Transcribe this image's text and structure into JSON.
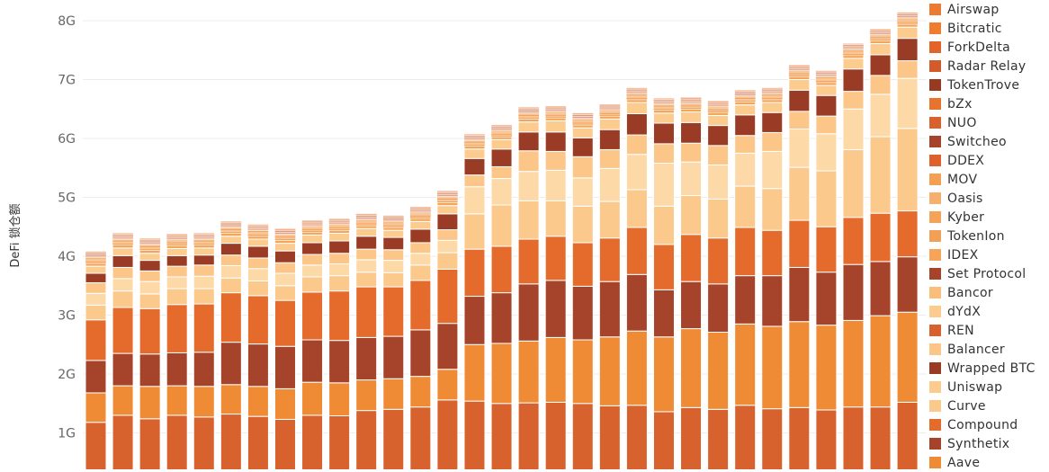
{
  "chart_data": {
    "type": "bar",
    "stacked": true,
    "ylabel": "DeFi 锁仓额",
    "xlabel": "",
    "ylim": [
      0,
      8.4
    ],
    "yticks": [
      {
        "value": 1,
        "label": "1G"
      },
      {
        "value": 2,
        "label": "2G"
      },
      {
        "value": 3,
        "label": "3G"
      },
      {
        "value": 4,
        "label": "4G"
      },
      {
        "value": 5,
        "label": "5G"
      },
      {
        "value": 6,
        "label": "6G"
      },
      {
        "value": 7,
        "label": "7G"
      },
      {
        "value": 8,
        "label": "8G"
      }
    ],
    "grid": true,
    "legend_position": "right",
    "totals": [
      4.02,
      4.3,
      4.2,
      4.25,
      4.27,
      4.46,
      4.46,
      4.39,
      4.54,
      4.62,
      4.7,
      4.65,
      4.79,
      5.1,
      5.95,
      6.15,
      6.5,
      6.6,
      6.5,
      6.57,
      6.85,
      6.52,
      6.75,
      6.7,
      6.83,
      6.85,
      7.16,
      7.05,
      7.5,
      7.9,
      8.32
    ],
    "series": [
      {
        "name": "Aave",
        "color": "#D8622D",
        "values": [
          1.18,
          1.3,
          1.24,
          1.3,
          1.27,
          1.32,
          1.28,
          1.23,
          1.3,
          1.29,
          1.38,
          1.4,
          1.44,
          1.56,
          1.54,
          1.5,
          1.51,
          1.52,
          1.5,
          1.46,
          1.47,
          1.36,
          1.43,
          1.4,
          1.47,
          1.41,
          1.43,
          1.39,
          1.44,
          1.44,
          1.52
        ]
      },
      {
        "name": "Synthetix",
        "color": "#F08B35",
        "values": [
          0.5,
          0.5,
          0.55,
          0.5,
          0.52,
          0.5,
          0.51,
          0.52,
          0.56,
          0.56,
          0.52,
          0.52,
          0.52,
          0.52,
          0.96,
          1.02,
          1.05,
          1.1,
          1.08,
          1.17,
          1.26,
          1.27,
          1.34,
          1.31,
          1.38,
          1.4,
          1.46,
          1.44,
          1.47,
          1.55,
          1.53
        ]
      },
      {
        "name": "Compound",
        "color": "#A5442A",
        "values": [
          0.55,
          0.55,
          0.55,
          0.56,
          0.58,
          0.72,
          0.72,
          0.72,
          0.72,
          0.72,
          0.72,
          0.72,
          0.79,
          0.78,
          0.82,
          0.86,
          0.97,
          0.97,
          0.91,
          0.94,
          0.96,
          0.8,
          0.8,
          0.82,
          0.82,
          0.86,
          0.92,
          0.9,
          0.95,
          0.92,
          0.94
        ]
      },
      {
        "name": "Curve",
        "color": "#E46B2C",
        "values": [
          0.69,
          0.78,
          0.77,
          0.82,
          0.82,
          0.84,
          0.82,
          0.78,
          0.81,
          0.84,
          0.86,
          0.84,
          0.84,
          0.92,
          0.8,
          0.79,
          0.76,
          0.75,
          0.74,
          0.74,
          0.8,
          0.77,
          0.8,
          0.78,
          0.82,
          0.77,
          0.8,
          0.77,
          0.8,
          0.82,
          0.78
        ]
      },
      {
        "name": "Uniswap",
        "color": "#FBC98C",
        "values": [
          0.25,
          0.28,
          0.25,
          0.27,
          0.26,
          0.25,
          0.25,
          0.25,
          0.26,
          0.26,
          0.25,
          0.24,
          0.26,
          0.28,
          0.6,
          0.7,
          0.65,
          0.6,
          0.62,
          0.62,
          0.64,
          0.65,
          0.66,
          0.66,
          0.7,
          0.71,
          0.9,
          0.95,
          1.15,
          1.3,
          1.4
        ]
      },
      {
        "name": "Wrapped BTC",
        "color": "#FDD9A8",
        "values": [
          0.2,
          0.21,
          0.21,
          0.2,
          0.21,
          0.21,
          0.21,
          0.21,
          0.2,
          0.2,
          0.21,
          0.21,
          0.2,
          0.21,
          0.46,
          0.45,
          0.5,
          0.52,
          0.48,
          0.56,
          0.6,
          0.73,
          0.57,
          0.58,
          0.56,
          0.63,
          0.65,
          0.63,
          0.69,
          0.72,
          0.85
        ]
      },
      {
        "name": "Balancer",
        "color": "#FBC687",
        "values": [
          0.18,
          0.19,
          0.18,
          0.18,
          0.19,
          0.18,
          0.18,
          0.18,
          0.18,
          0.18,
          0.18,
          0.18,
          0.18,
          0.18,
          0.2,
          0.2,
          0.35,
          0.32,
          0.36,
          0.32,
          0.33,
          0.33,
          0.32,
          0.33,
          0.3,
          0.32,
          0.3,
          0.3,
          0.3,
          0.32,
          0.3
        ]
      },
      {
        "name": "REN",
        "color": "#9A3C25",
        "values": [
          0.16,
          0.2,
          0.18,
          0.18,
          0.17,
          0.2,
          0.2,
          0.2,
          0.2,
          0.21,
          0.22,
          0.21,
          0.23,
          0.27,
          0.28,
          0.3,
          0.32,
          0.33,
          0.32,
          0.34,
          0.36,
          0.35,
          0.35,
          0.34,
          0.35,
          0.34,
          0.36,
          0.35,
          0.38,
          0.35,
          0.38
        ]
      },
      {
        "name": "dYdX",
        "color": "#FCCB8E",
        "values": [
          0.12,
          0.13,
          0.12,
          0.12,
          0.12,
          0.12,
          0.12,
          0.13,
          0.13,
          0.13,
          0.13,
          0.12,
          0.13,
          0.14,
          0.16,
          0.16,
          0.17,
          0.19,
          0.17,
          0.18,
          0.19,
          0.17,
          0.18,
          0.17,
          0.17,
          0.17,
          0.18,
          0.17,
          0.18,
          0.19,
          0.19
        ]
      },
      {
        "name": "Bancor",
        "color": "#F4A55A",
        "values": [
          0.05,
          0.05,
          0.05,
          0.05,
          0.05,
          0.05,
          0.05,
          0.05,
          0.05,
          0.05,
          0.05,
          0.05,
          0.05,
          0.05,
          0.05,
          0.05,
          0.05,
          0.05,
          0.05,
          0.05,
          0.05,
          0.05,
          0.05,
          0.05,
          0.05,
          0.05,
          0.05,
          0.05,
          0.05,
          0.05,
          0.05
        ]
      },
      {
        "name": "Set Protocol",
        "color": "#F5A55C",
        "values": [
          0.03,
          0.03,
          0.03,
          0.03,
          0.03,
          0.03,
          0.03,
          0.03,
          0.03,
          0.03,
          0.03,
          0.03,
          0.03,
          0.03,
          0.03,
          0.03,
          0.03,
          0.03,
          0.03,
          0.03,
          0.03,
          0.03,
          0.03,
          0.03,
          0.03,
          0.03,
          0.03,
          0.03,
          0.03,
          0.03,
          0.03
        ]
      },
      {
        "name": "IDEX",
        "color": "#F6A45A",
        "values": [
          0.02,
          0.02,
          0.02,
          0.02,
          0.02,
          0.02,
          0.02,
          0.02,
          0.02,
          0.02,
          0.02,
          0.02,
          0.02,
          0.02,
          0.02,
          0.02,
          0.02,
          0.02,
          0.02,
          0.02,
          0.02,
          0.02,
          0.02,
          0.02,
          0.02,
          0.02,
          0.02,
          0.02,
          0.02,
          0.02,
          0.02
        ]
      },
      {
        "name": "TokenIon",
        "color": "#F2A056",
        "values": [
          0.02,
          0.02,
          0.02,
          0.02,
          0.02,
          0.02,
          0.02,
          0.02,
          0.02,
          0.02,
          0.02,
          0.02,
          0.02,
          0.02,
          0.02,
          0.02,
          0.02,
          0.02,
          0.02,
          0.02,
          0.02,
          0.02,
          0.02,
          0.02,
          0.02,
          0.02,
          0.02,
          0.02,
          0.02,
          0.02,
          0.02
        ]
      },
      {
        "name": "Kyber",
        "color": "#F4A358",
        "values": [
          0.02,
          0.02,
          0.02,
          0.02,
          0.02,
          0.02,
          0.02,
          0.02,
          0.02,
          0.02,
          0.02,
          0.02,
          0.02,
          0.02,
          0.02,
          0.02,
          0.02,
          0.02,
          0.02,
          0.02,
          0.02,
          0.02,
          0.02,
          0.02,
          0.02,
          0.02,
          0.02,
          0.02,
          0.02,
          0.02,
          0.02
        ]
      },
      {
        "name": "Oasis",
        "color": "#F5B06E",
        "values": [
          0.01,
          0.01,
          0.01,
          0.01,
          0.01,
          0.01,
          0.01,
          0.01,
          0.01,
          0.01,
          0.01,
          0.01,
          0.01,
          0.01,
          0.01,
          0.01,
          0.01,
          0.01,
          0.01,
          0.01,
          0.01,
          0.01,
          0.01,
          0.01,
          0.01,
          0.01,
          0.01,
          0.01,
          0.01,
          0.01,
          0.01
        ]
      },
      {
        "name": "MOV",
        "color": "#F3A053",
        "values": [
          0.01,
          0.01,
          0.01,
          0.01,
          0.01,
          0.01,
          0.01,
          0.01,
          0.01,
          0.01,
          0.01,
          0.01,
          0.01,
          0.01,
          0.01,
          0.01,
          0.01,
          0.01,
          0.01,
          0.01,
          0.01,
          0.01,
          0.01,
          0.01,
          0.01,
          0.01,
          0.01,
          0.01,
          0.01,
          0.01,
          0.01
        ]
      },
      {
        "name": "DDEX",
        "color": "#E0602D",
        "values": [
          0.01,
          0.01,
          0.01,
          0.01,
          0.01,
          0.01,
          0.01,
          0.01,
          0.01,
          0.01,
          0.01,
          0.01,
          0.01,
          0.01,
          0.01,
          0.01,
          0.01,
          0.01,
          0.01,
          0.01,
          0.01,
          0.01,
          0.01,
          0.01,
          0.01,
          0.01,
          0.01,
          0.01,
          0.01,
          0.01,
          0.01
        ]
      },
      {
        "name": "Switcheo",
        "color": "#A5442A",
        "values": [
          0.01,
          0.01,
          0.01,
          0.01,
          0.01,
          0.01,
          0.01,
          0.01,
          0.01,
          0.01,
          0.01,
          0.01,
          0.01,
          0.01,
          0.01,
          0.01,
          0.01,
          0.01,
          0.01,
          0.01,
          0.01,
          0.01,
          0.01,
          0.01,
          0.01,
          0.01,
          0.01,
          0.01,
          0.01,
          0.01,
          0.01
        ]
      },
      {
        "name": "NUO",
        "color": "#D8622D",
        "values": [
          0.01,
          0.01,
          0.01,
          0.01,
          0.01,
          0.01,
          0.01,
          0.01,
          0.01,
          0.01,
          0.01,
          0.01,
          0.01,
          0.01,
          0.01,
          0.01,
          0.01,
          0.01,
          0.01,
          0.01,
          0.01,
          0.01,
          0.01,
          0.01,
          0.01,
          0.01,
          0.01,
          0.01,
          0.01,
          0.01,
          0.01
        ]
      },
      {
        "name": "bZx",
        "color": "#E8732C",
        "values": [
          0.01,
          0.01,
          0.01,
          0.01,
          0.01,
          0.01,
          0.01,
          0.01,
          0.01,
          0.01,
          0.01,
          0.01,
          0.01,
          0.01,
          0.01,
          0.01,
          0.01,
          0.01,
          0.01,
          0.01,
          0.01,
          0.01,
          0.01,
          0.01,
          0.01,
          0.01,
          0.01,
          0.01,
          0.01,
          0.01,
          0.01
        ]
      },
      {
        "name": "TokenTrove",
        "color": "#963A21",
        "values": [
          0.01,
          0.01,
          0.01,
          0.01,
          0.01,
          0.01,
          0.01,
          0.01,
          0.01,
          0.01,
          0.01,
          0.01,
          0.01,
          0.01,
          0.01,
          0.01,
          0.01,
          0.01,
          0.01,
          0.01,
          0.01,
          0.01,
          0.01,
          0.01,
          0.01,
          0.01,
          0.01,
          0.01,
          0.01,
          0.01,
          0.01
        ]
      },
      {
        "name": "Radar Relay",
        "color": "#D15B2A",
        "values": [
          0.01,
          0.01,
          0.01,
          0.01,
          0.01,
          0.01,
          0.01,
          0.01,
          0.01,
          0.01,
          0.01,
          0.01,
          0.01,
          0.01,
          0.01,
          0.01,
          0.01,
          0.01,
          0.01,
          0.01,
          0.01,
          0.01,
          0.01,
          0.01,
          0.01,
          0.01,
          0.01,
          0.01,
          0.01,
          0.01,
          0.01
        ]
      },
      {
        "name": "ForkDelta",
        "color": "#E2642C",
        "values": [
          0.01,
          0.01,
          0.01,
          0.01,
          0.01,
          0.01,
          0.01,
          0.01,
          0.01,
          0.01,
          0.01,
          0.01,
          0.01,
          0.01,
          0.01,
          0.01,
          0.01,
          0.01,
          0.01,
          0.01,
          0.01,
          0.01,
          0.01,
          0.01,
          0.01,
          0.01,
          0.01,
          0.01,
          0.01,
          0.01,
          0.01
        ]
      },
      {
        "name": "Bitcratic",
        "color": "#F07C30",
        "values": [
          0.01,
          0.01,
          0.01,
          0.01,
          0.01,
          0.01,
          0.01,
          0.01,
          0.01,
          0.01,
          0.01,
          0.01,
          0.01,
          0.01,
          0.01,
          0.01,
          0.01,
          0.01,
          0.01,
          0.01,
          0.01,
          0.01,
          0.01,
          0.01,
          0.01,
          0.01,
          0.01,
          0.01,
          0.01,
          0.01,
          0.01
        ]
      },
      {
        "name": "Airswap",
        "color": "#EC7A30",
        "values": [
          0.01,
          0.01,
          0.01,
          0.01,
          0.01,
          0.01,
          0.01,
          0.01,
          0.01,
          0.01,
          0.01,
          0.01,
          0.01,
          0.01,
          0.01,
          0.01,
          0.01,
          0.01,
          0.01,
          0.01,
          0.01,
          0.01,
          0.01,
          0.01,
          0.01,
          0.01,
          0.01,
          0.01,
          0.01,
          0.01,
          0.01
        ]
      }
    ]
  },
  "legend": {
    "items": [
      {
        "label": "Airswap",
        "color": "#EC7A30"
      },
      {
        "label": "Bitcratic",
        "color": "#F07C30"
      },
      {
        "label": "ForkDelta",
        "color": "#E2642C"
      },
      {
        "label": "Radar Relay",
        "color": "#D15B2A"
      },
      {
        "label": "TokenTrove",
        "color": "#963A21"
      },
      {
        "label": "bZx",
        "color": "#E8732C"
      },
      {
        "label": "NUO",
        "color": "#D8622D"
      },
      {
        "label": "Switcheo",
        "color": "#A5442A"
      },
      {
        "label": "DDEX",
        "color": "#E0602D"
      },
      {
        "label": "MOV",
        "color": "#F3A053"
      },
      {
        "label": "Oasis",
        "color": "#F5B06E"
      },
      {
        "label": "Kyber",
        "color": "#F4A358"
      },
      {
        "label": "TokenIon",
        "color": "#F2A056"
      },
      {
        "label": "IDEX",
        "color": "#F6A45A"
      },
      {
        "label": "Set Protocol",
        "color": "#A5442A"
      },
      {
        "label": "Bancor",
        "color": "#F9BE7C"
      },
      {
        "label": "dYdX",
        "color": "#FCCB8E"
      },
      {
        "label": "REN",
        "color": "#D8622D"
      },
      {
        "label": "Balancer",
        "color": "#FBC687"
      },
      {
        "label": "Wrapped BTC",
        "color": "#9A3C25"
      },
      {
        "label": "Uniswap",
        "color": "#FCCB8E"
      },
      {
        "label": "Curve",
        "color": "#FBC98C"
      },
      {
        "label": "Compound",
        "color": "#E46B2C"
      },
      {
        "label": "Synthetix",
        "color": "#A5442A"
      },
      {
        "label": "Aave",
        "color": "#F08B35"
      }
    ]
  }
}
